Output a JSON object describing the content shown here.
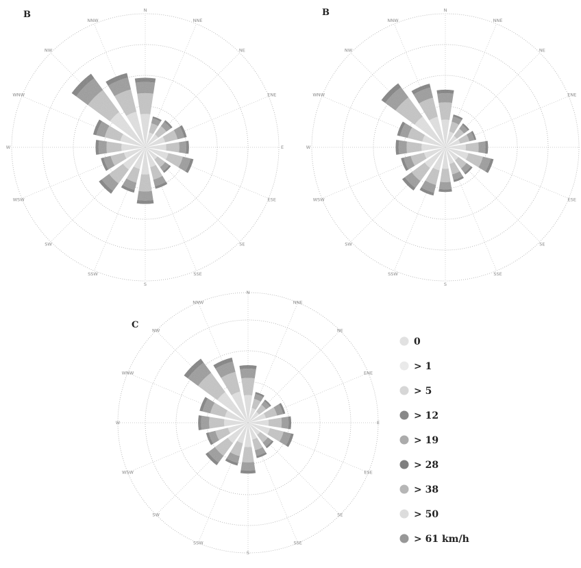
{
  "chart_data": [
    {
      "type": "rose",
      "panel_label": "B",
      "directions": [
        "N",
        "NNE",
        "NE",
        "ENE",
        "E",
        "ESE",
        "SE",
        "SSE",
        "S",
        "SSW",
        "SW",
        "WSW",
        "W",
        "WNW",
        "NW",
        "NNW"
      ],
      "direction_labels": [
        "N",
        "NNE",
        "NE",
        "ENE",
        "E",
        "ESE",
        "SE",
        "SSE",
        "S",
        "SSW",
        "SW",
        "WSW",
        "W",
        "WNW",
        "NW",
        "NNW"
      ],
      "radial_max": 10,
      "legend_placement": "none",
      "values": [
        7,
        3.2,
        3.4,
        4.3,
        4.4,
        5.0,
        3.2,
        4.3,
        5.7,
        4.7,
        5.8,
        4.6,
        5.0,
        5.4,
        9.2,
        7.7
      ]
    },
    {
      "type": "rose",
      "panel_label": "B",
      "directions": [
        "N",
        "NNE",
        "NE",
        "ENE",
        "E",
        "ESE",
        "SE",
        "SSE",
        "S",
        "SSW",
        "SW",
        "WSW",
        "W",
        "WNW",
        "NW",
        "NNW"
      ],
      "direction_labels": [
        "N",
        "NNE",
        "NE",
        "ENE",
        "E",
        "ESE",
        "SE",
        "SSE",
        "S",
        "SSW",
        "SW",
        "WSW",
        "W",
        "WNW",
        "NW",
        "NNW"
      ],
      "radial_max": 10,
      "legend_placement": "none",
      "values": [
        5.8,
        3.4,
        3.0,
        3.2,
        4.3,
        5.0,
        3.4,
        3.6,
        4.5,
        5.0,
        5.4,
        4.6,
        5.0,
        5.0,
        8.0,
        6.6
      ]
    },
    {
      "type": "rose",
      "panel_label": "C",
      "directions": [
        "N",
        "NNE",
        "NE",
        "ENE",
        "E",
        "ESE",
        "SE",
        "SSE",
        "S",
        "SSW",
        "SW",
        "WSW",
        "W",
        "WNW",
        "NW",
        "NNW"
      ],
      "direction_labels": [
        "N",
        "NNE",
        "NE",
        "ENE",
        "E",
        "ESE",
        "SE",
        "SSE",
        "S",
        "SSW",
        "SW",
        "WSW",
        "W",
        "WNW",
        "NW",
        "NNW"
      ],
      "radial_max": 10,
      "legend_placement": "right",
      "values": [
        6.0,
        3.3,
        3.0,
        4.0,
        4.5,
        4.9,
        3.3,
        3.8,
        5.3,
        4.6,
        5.5,
        4.5,
        5.2,
        5.2,
        8.3,
        7.0
      ]
    }
  ],
  "legend": {
    "items": [
      {
        "label": "0",
        "color": "#e8e8e8"
      },
      {
        "label": "> 1",
        "color": "#f2f2f2"
      },
      {
        "label": "> 5",
        "color": "#dcdcdc"
      },
      {
        "label": "> 12",
        "color": "#7a7a7a"
      },
      {
        "label": "> 19",
        "color": "#a8a8a8"
      },
      {
        "label": "> 28",
        "color": "#6d6d6d"
      },
      {
        "label": "> 38",
        "color": "#b5b5b5"
      },
      {
        "label": "> 50",
        "color": "#e3e3e3"
      },
      {
        "label": "> 61 km/h",
        "color": "#8f8f8f"
      }
    ]
  },
  "colors": {
    "band_inner": "#e4e4e4",
    "band_mid": "#c6c6c6",
    "band_outer": "#9a9a9a",
    "band_edge": "#7c7c7c"
  }
}
